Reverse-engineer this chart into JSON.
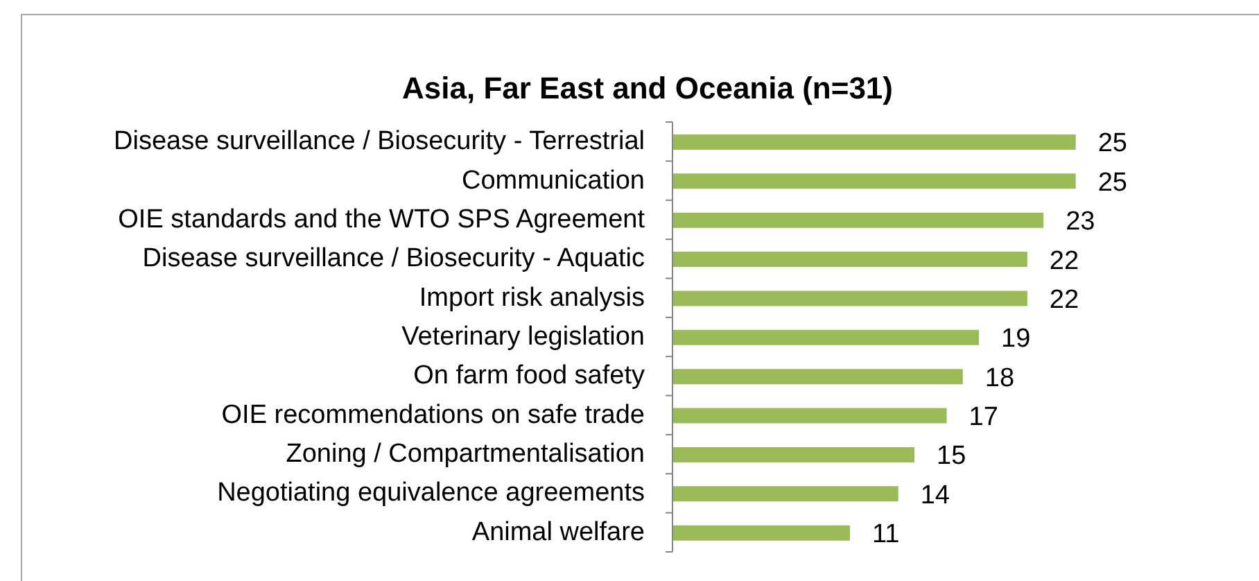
{
  "chart_data": {
    "type": "bar",
    "orientation": "horizontal",
    "title": "Asia, Far East and Oceania (n=31)",
    "categories": [
      "Disease surveillance / Biosecurity - Terrestrial",
      "Communication",
      "OIE standards and the WTO SPS Agreement",
      "Disease surveillance / Biosecurity - Aquatic",
      "Import risk analysis",
      "Veterinary legislation",
      "On farm food safety",
      "OIE recommendations on safe trade",
      "Zoning / Compartmentalisation",
      "Negotiating equivalence agreements",
      "Animal welfare"
    ],
    "values": [
      25,
      25,
      23,
      22,
      22,
      19,
      18,
      17,
      15,
      14,
      11
    ],
    "color": "#9bbb59",
    "data_labels": true,
    "tick_labels": "y"
  }
}
